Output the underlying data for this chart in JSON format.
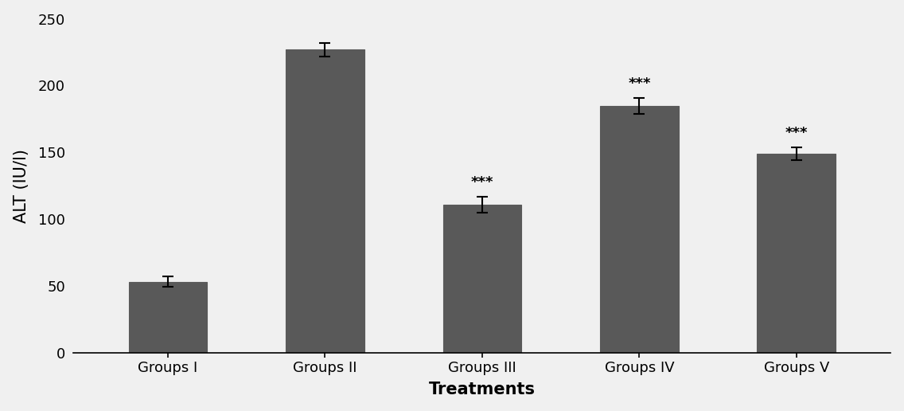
{
  "categories": [
    "Groups I",
    "Groups II",
    "Groups III",
    "Groups IV",
    "Groups V"
  ],
  "values": [
    53,
    227,
    111,
    185,
    149
  ],
  "errors": [
    4,
    5,
    6,
    6,
    5
  ],
  "bar_color": "#595959",
  "significance": [
    "",
    "",
    "***",
    "***",
    "***"
  ],
  "xlabel": "Treatments",
  "ylabel": "ALT (IU/l)",
  "ylim": [
    0,
    250
  ],
  "yticks": [
    0,
    50,
    100,
    150,
    200,
    250
  ],
  "axis_label_fontsize": 15,
  "tick_fontsize": 13,
  "sig_fontsize": 13,
  "background_color": "#f0f0f0",
  "bar_width": 0.5,
  "edge_color": "#595959"
}
